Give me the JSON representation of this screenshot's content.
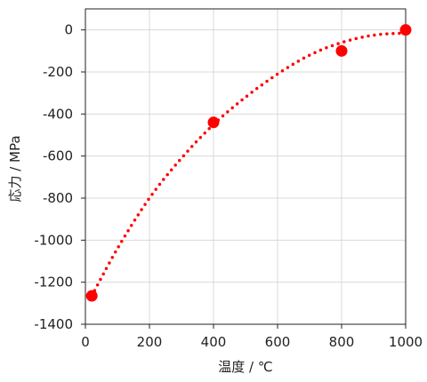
{
  "chart_data": {
    "type": "scatter",
    "title": "",
    "xlabel": "温度 / ℃",
    "ylabel": "応力 / MPa",
    "xlim": [
      0,
      1000
    ],
    "ylim": [
      -1400,
      100
    ],
    "xticks": [
      0,
      200,
      400,
      600,
      800,
      1000
    ],
    "yticks": [
      0,
      -200,
      -400,
      -600,
      -800,
      -1000,
      -1200,
      -1400
    ],
    "xtick_labels": [
      "0",
      "200",
      "400",
      "600",
      "800",
      "1000"
    ],
    "ytick_labels": [
      "0",
      "-200",
      "-400",
      "-600",
      "-800",
      "-1000",
      "-1200",
      "-1400"
    ],
    "grid": true,
    "legend": false,
    "series": [
      {
        "style": "markers",
        "color": "#ff0000",
        "x": [
          20,
          400,
          800,
          1000
        ],
        "y": [
          -1265,
          -440,
          -100,
          0
        ]
      },
      {
        "style": "dotted-line",
        "color": "#ff0000",
        "x": [
          20,
          100,
          200,
          300,
          400,
          500,
          600,
          700,
          800,
          900,
          1000
        ],
        "y": [
          -1265,
          -1040,
          -800,
          -610,
          -450,
          -320,
          -210,
          -120,
          -60,
          -25,
          -15
        ]
      }
    ]
  }
}
